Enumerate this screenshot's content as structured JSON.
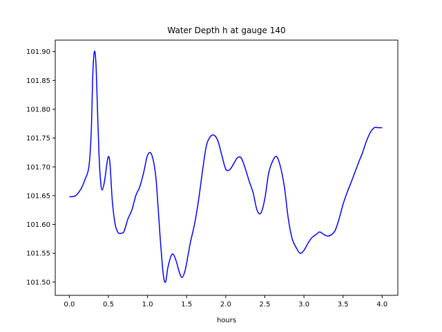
{
  "chart_data": {
    "type": "line",
    "title": "Water Depth h at gauge 140",
    "xlabel": "hours",
    "ylabel": "",
    "xlim": [
      -0.18,
      4.2
    ],
    "ylim": [
      101.477,
      101.92
    ],
    "xticks": [
      0.0,
      0.5,
      1.0,
      1.5,
      2.0,
      2.5,
      3.0,
      3.5,
      4.0
    ],
    "xtick_labels": [
      "0.0",
      "0.5",
      "1.0",
      "1.5",
      "2.0",
      "2.5",
      "3.0",
      "3.5",
      "4.0"
    ],
    "yticks": [
      101.5,
      101.55,
      101.6,
      101.65,
      101.7,
      101.75,
      101.8,
      101.85,
      101.9
    ],
    "ytick_labels": [
      "101.50",
      "101.55",
      "101.60",
      "101.65",
      "101.70",
      "101.75",
      "101.80",
      "101.85",
      "101.90"
    ],
    "grid": false,
    "series": [
      {
        "color": "#0000ff",
        "x": [
          0.0,
          0.08,
          0.15,
          0.2,
          0.25,
          0.28,
          0.3,
          0.32,
          0.34,
          0.36,
          0.38,
          0.4,
          0.42,
          0.45,
          0.48,
          0.5,
          0.52,
          0.55,
          0.58,
          0.6,
          0.63,
          0.67,
          0.7,
          0.75,
          0.8,
          0.85,
          0.9,
          0.95,
          1.0,
          1.05,
          1.1,
          1.13,
          1.16,
          1.2,
          1.23,
          1.26,
          1.3,
          1.33,
          1.37,
          1.4,
          1.44,
          1.48,
          1.52,
          1.55,
          1.6,
          1.65,
          1.7,
          1.75,
          1.8,
          1.85,
          1.9,
          1.95,
          2.0,
          2.05,
          2.1,
          2.15,
          2.2,
          2.25,
          2.3,
          2.35,
          2.4,
          2.45,
          2.5,
          2.55,
          2.6,
          2.65,
          2.7,
          2.75,
          2.8,
          2.85,
          2.9,
          2.95,
          3.0,
          3.05,
          3.1,
          3.15,
          3.2,
          3.25,
          3.3,
          3.35,
          3.4,
          3.45,
          3.5,
          3.55,
          3.6,
          3.65,
          3.7,
          3.75,
          3.8,
          3.85,
          3.9,
          3.95,
          4.0
        ],
        "y": [
          101.648,
          101.65,
          101.662,
          101.678,
          101.7,
          101.76,
          101.86,
          101.9,
          101.88,
          101.8,
          101.72,
          101.675,
          101.66,
          101.675,
          101.705,
          101.718,
          101.705,
          101.64,
          101.605,
          101.593,
          101.585,
          101.585,
          101.588,
          101.61,
          101.625,
          101.65,
          101.665,
          101.69,
          101.72,
          101.722,
          101.69,
          101.64,
          101.58,
          101.515,
          101.5,
          101.525,
          101.545,
          101.548,
          101.535,
          101.52,
          101.508,
          101.52,
          101.548,
          101.57,
          101.6,
          101.64,
          101.69,
          101.735,
          101.752,
          101.755,
          101.745,
          101.72,
          101.696,
          101.695,
          101.705,
          101.716,
          101.715,
          101.697,
          101.675,
          101.655,
          101.625,
          101.62,
          101.645,
          101.69,
          101.71,
          101.718,
          101.7,
          101.665,
          101.61,
          101.575,
          101.56,
          101.55,
          101.555,
          101.567,
          101.577,
          101.582,
          101.587,
          101.583,
          101.58,
          101.582,
          101.59,
          101.61,
          101.635,
          101.655,
          101.672,
          101.69,
          101.708,
          101.725,
          101.745,
          101.76,
          101.768,
          101.768,
          101.768
        ]
      }
    ]
  }
}
